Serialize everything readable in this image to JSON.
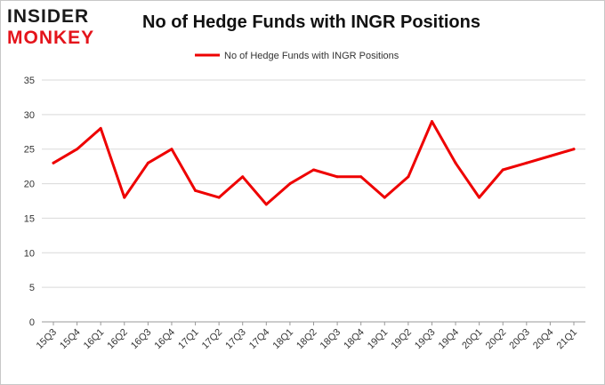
{
  "logo": {
    "line1": "INSIDER",
    "line2": "MONKEY"
  },
  "colors": {
    "series": "#ee0000",
    "grid": "#d9d9d9",
    "axis": "#999999",
    "logo_red": "#e4141b"
  },
  "chart_data": {
    "type": "line",
    "title": "No of Hedge Funds with INGR Positions",
    "xlabel": "",
    "ylabel": "",
    "ylim": [
      0,
      35
    ],
    "yticks": [
      0,
      5,
      10,
      15,
      20,
      25,
      30,
      35
    ],
    "grid": true,
    "legend_position": "top-center",
    "categories": [
      "15Q3",
      "15Q4",
      "16Q1",
      "16Q2",
      "16Q3",
      "16Q4",
      "17Q1",
      "17Q2",
      "17Q3",
      "17Q4",
      "18Q1",
      "18Q2",
      "18Q3",
      "18Q4",
      "19Q1",
      "19Q2",
      "19Q3",
      "19Q4",
      "20Q1",
      "20Q2",
      "20Q3",
      "20Q4",
      "21Q1"
    ],
    "series": [
      {
        "name": "No of Hedge Funds with INGR Positions",
        "values": [
          23,
          25,
          28,
          18,
          23,
          25,
          19,
          18,
          21,
          17,
          20,
          22,
          21,
          21,
          18,
          21,
          29,
          23,
          18,
          22,
          23,
          24,
          25
        ]
      }
    ]
  }
}
